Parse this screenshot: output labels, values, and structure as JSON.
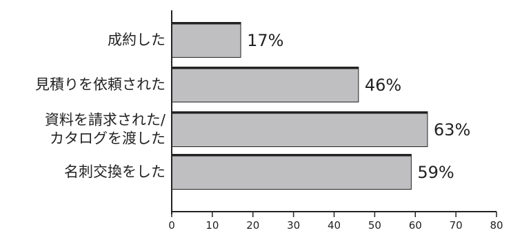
{
  "chart_data": {
    "type": "bar",
    "orientation": "horizontal",
    "categories": [
      [
        "成約した"
      ],
      [
        "見積りを依頼された"
      ],
      [
        "資料を請求された/",
        "カタログを渡した"
      ],
      [
        "名刺交換をした"
      ]
    ],
    "values": [
      17,
      46,
      63,
      59
    ],
    "value_labels": [
      "17%",
      "46%",
      "63%",
      "59%"
    ],
    "xlim": [
      0,
      80
    ],
    "xticks": [
      0,
      10,
      20,
      30,
      40,
      50,
      60,
      70,
      80
    ],
    "grid": false,
    "legend": "none",
    "colors": {
      "bar_fill": "#bfbfc1",
      "bar_border": "#222222",
      "axis": "#222222"
    }
  }
}
